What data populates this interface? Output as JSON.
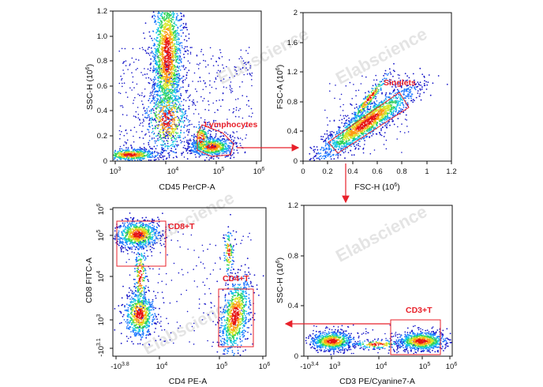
{
  "watermark": "Elabscience",
  "colors": {
    "gate": "#e8202a",
    "density": [
      "#1414c8",
      "#1e78ff",
      "#19c8e6",
      "#2fd25a",
      "#d7e628",
      "#ff9a14",
      "#e61414"
    ]
  },
  "chart_data": [
    {
      "type": "scatter",
      "xlabel": "CD45 PerCP-A",
      "ylabel": "SSC-H (10^6)",
      "xscale": "log",
      "xlim": [
        1000,
        1000000
      ],
      "ylim": [
        0,
        1.2
      ],
      "xticks": [
        "10^3",
        "10^4",
        "10^5",
        "10^6"
      ],
      "yticks": [
        "0",
        "0.2",
        "0.4",
        "0.6",
        "0.8",
        "1.0",
        "1.2"
      ],
      "gates": [
        {
          "label": "Lymphocytes"
        }
      ]
    },
    {
      "type": "scatter",
      "xlabel": "FSC-H (10^6)",
      "ylabel": "FSC-A (10^6)",
      "xlim": [
        0,
        1.2
      ],
      "ylim": [
        0,
        2
      ],
      "xticks": [
        "0",
        "0.2",
        "0.4",
        "0.6",
        "0.8",
        "1",
        "1.2"
      ],
      "yticks": [
        "0",
        "0.4",
        "0.8",
        "1.2",
        "1.6",
        "2"
      ],
      "gates": [
        {
          "label": "Singlets"
        }
      ]
    },
    {
      "type": "scatter",
      "xlabel": "CD4 PE-A",
      "ylabel": "CD8 FITC-A",
      "xscale": "log",
      "yscale": "log",
      "xticks": [
        "-10^3.8",
        "10^4",
        "10^5",
        "10^6"
      ],
      "yticks": [
        "-10^3.1",
        "10^3",
        "10^4",
        "10^5",
        "10^6"
      ],
      "gates": [
        {
          "label": "CD8+T"
        },
        {
          "label": "CD4+T"
        }
      ]
    },
    {
      "type": "scatter",
      "xlabel": "CD3 PE/Cyanine7-A",
      "ylabel": "SSC-H (10^6)",
      "xscale": "log",
      "ylim": [
        0,
        1.2
      ],
      "xticks": [
        "-10^3.4",
        "10^3",
        "10^4",
        "10^5",
        "10^6"
      ],
      "yticks": [
        "0",
        "0.4",
        "0.8",
        "1.2"
      ],
      "gates": [
        {
          "label": "CD3+T"
        }
      ]
    }
  ]
}
